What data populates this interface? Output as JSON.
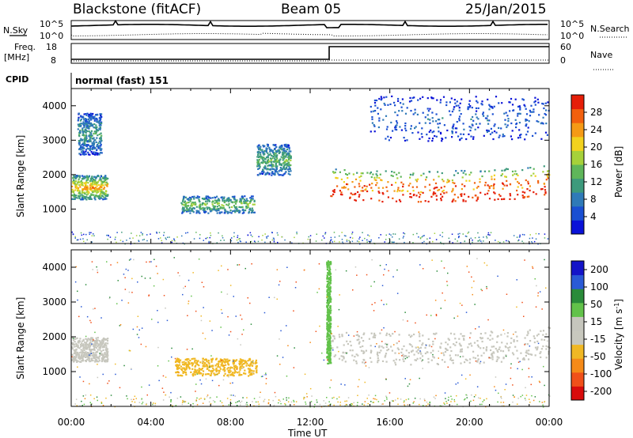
{
  "header": {
    "station": "Blackstone (fitACF)",
    "beam": "Beam 05",
    "date": "25/Jan/2015"
  },
  "top_panels": {
    "nsky": {
      "label": "N.Sky",
      "right_label": "N.Search",
      "left_ticks": [
        "10^5",
        "10^0"
      ],
      "right_ticks": [
        "10^5",
        "10^0"
      ]
    },
    "freq": {
      "label_line1": "Freq.",
      "label_line2": "[MHz]",
      "right_label": "Nave",
      "left_ticks": [
        "18",
        "8"
      ],
      "right_ticks": [
        "60",
        "0"
      ]
    },
    "cpid": {
      "label": "CPID",
      "value": "normal (fast) 151"
    }
  },
  "colors": {
    "power_scale": [
      "#0a12d8",
      "#1a4fd2",
      "#2f7ab8",
      "#3d9a7c",
      "#5fb65a",
      "#a6d13a",
      "#f2d21e",
      "#f59a16",
      "#f2600e",
      "#e51e08"
    ],
    "velocity_scale": [
      "#1414c8",
      "#2a5ad6",
      "#2a8b3a",
      "#62c24a",
      "#c6c6bd",
      "#c8c8be",
      "#f0b824",
      "#f58a18",
      "#f0501a",
      "#d80c0c"
    ]
  },
  "chart_data": [
    {
      "type": "heatmap",
      "name": "Power",
      "ylabel": "Slant Range [km]",
      "yticks": [
        "1000",
        "2000",
        "3000",
        "4000"
      ],
      "ylim": [
        0,
        4500
      ],
      "xlim": [
        0,
        24
      ],
      "colorbar": {
        "label": "Power [dB]",
        "ticks": [
          "4",
          "8",
          "12",
          "16",
          "20",
          "24",
          "28"
        ],
        "range": [
          0,
          32
        ]
      },
      "features": [
        {
          "t_start": 0.0,
          "t_end": 1.8,
          "range_km": [
            1300,
            2000
          ],
          "power_db": 20
        },
        {
          "t_start": 0.3,
          "t_end": 1.5,
          "range_km": [
            2600,
            3800
          ],
          "power_db": 10
        },
        {
          "t_start": 5.5,
          "t_end": 9.2,
          "range_km": [
            900,
            1400
          ],
          "power_db": 14
        },
        {
          "t_start": 9.3,
          "t_end": 11.0,
          "range_km": [
            2000,
            2900
          ],
          "power_db": 12
        },
        {
          "t_start": 13.0,
          "t_end": 24.0,
          "range_km": [
            1100,
            2200
          ],
          "power_db": 24
        },
        {
          "t_start": 15.0,
          "t_end": 24.0,
          "range_km": [
            3000,
            4300
          ],
          "power_db": 6
        }
      ]
    },
    {
      "type": "heatmap",
      "name": "Velocity",
      "ylabel": "Slant Range [km]",
      "yticks": [
        "1000",
        "2000",
        "3000",
        "4000"
      ],
      "ylim": [
        0,
        4500
      ],
      "xlim": [
        0,
        24
      ],
      "xticks": [
        "00:00",
        "04:00",
        "08:00",
        "12:00",
        "16:00",
        "20:00",
        "00:00"
      ],
      "xlabel": "Time UT",
      "colorbar": {
        "label": "Velocity [m s^-1]",
        "ticks": [
          "200",
          "100",
          "50",
          "15",
          "-15",
          "-50",
          "-100",
          "-200"
        ],
        "range": [
          -250,
          250
        ]
      },
      "features": [
        {
          "t_start": 0.0,
          "t_end": 1.8,
          "range_km": [
            1300,
            2000
          ],
          "velocity": 0
        },
        {
          "t_start": 5.2,
          "t_end": 9.3,
          "range_km": [
            900,
            1400
          ],
          "velocity": -40
        },
        {
          "t_start": 12.8,
          "t_end": 13.0,
          "range_km": [
            1200,
            4200
          ],
          "velocity": 40
        },
        {
          "t_start": 13.0,
          "t_end": 24.0,
          "range_km": [
            1100,
            2200
          ],
          "velocity": 0
        }
      ]
    }
  ],
  "x_axis": {
    "ticks": [
      "00:00",
      "04:00",
      "08:00",
      "12:00",
      "16:00",
      "20:00",
      "00:00"
    ],
    "label": "Time UT"
  }
}
